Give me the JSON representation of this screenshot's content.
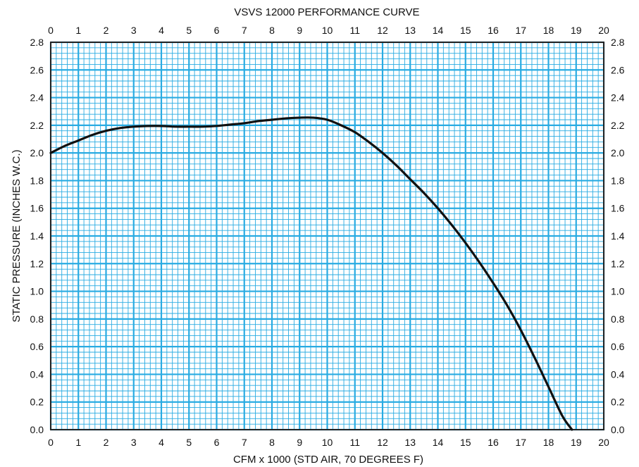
{
  "chart_data": {
    "type": "line",
    "title": "VSVS 12000 PERFORMANCE CURVE",
    "xlabel": "CFM x 1000  (STD AIR, 70 DEGREES F)",
    "ylabel": "STATIC PRESSURE  (INCHES W.C.)",
    "xlim": [
      0,
      20
    ],
    "ylim": [
      0,
      2.8
    ],
    "x_ticks": [
      "0",
      "1",
      "2",
      "3",
      "4",
      "5",
      "6",
      "7",
      "8",
      "9",
      "10",
      "11",
      "12",
      "13",
      "14",
      "15",
      "16",
      "17",
      "18",
      "19",
      "20"
    ],
    "y_ticks": [
      "0.0",
      "0.2",
      "0.4",
      "0.6",
      "0.8",
      "1.0",
      "1.2",
      "1.4",
      "1.6",
      "1.8",
      "2.0",
      "2.2",
      "2.4",
      "2.6",
      "2.8"
    ],
    "grid": true,
    "series": [
      {
        "x": [
          0,
          0.5,
          1,
          1.5,
          2,
          2.5,
          3,
          3.5,
          4,
          4.5,
          5,
          5.5,
          6,
          6.5,
          7,
          7.5,
          8,
          8.5,
          9,
          9.5,
          10,
          10.5,
          11,
          11.5,
          12,
          12.5,
          13,
          13.5,
          14,
          14.5,
          15,
          15.5,
          16,
          16.5,
          17,
          17.5,
          18,
          18.5,
          18.85
        ],
        "y": [
          2.0,
          2.05,
          2.09,
          2.13,
          2.16,
          2.18,
          2.19,
          2.195,
          2.195,
          2.19,
          2.19,
          2.19,
          2.195,
          2.205,
          2.215,
          2.23,
          2.24,
          2.25,
          2.255,
          2.255,
          2.24,
          2.2,
          2.15,
          2.08,
          2.0,
          1.91,
          1.81,
          1.71,
          1.6,
          1.48,
          1.35,
          1.21,
          1.06,
          0.9,
          0.72,
          0.52,
          0.31,
          0.1,
          0.0
        ]
      }
    ],
    "colors": {
      "grid": "#29abe2",
      "curve": "#111111",
      "frame": "#222222"
    }
  }
}
